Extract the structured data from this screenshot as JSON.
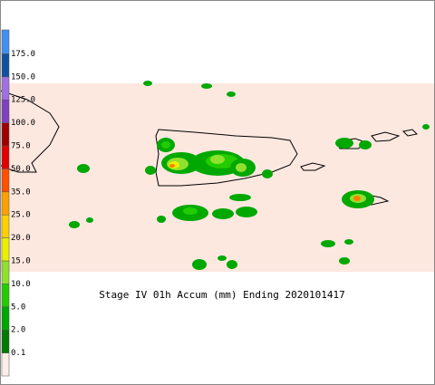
{
  "title": "Stage IV 01h Accum (mm) Ending 2020101417",
  "legend": {
    "labels": [
      "0.1",
      "2.0",
      "5.0",
      "10.0",
      "15.0",
      "20.0",
      "25.0",
      "35.0",
      "50.0",
      "75.0",
      "100.0",
      "125.0",
      "150.0",
      "175.0"
    ],
    "colors": [
      "#fbeee8",
      "#007a00",
      "#00a800",
      "#22cc00",
      "#90e030",
      "#e8f000",
      "#ffd000",
      "#ffa000",
      "#ff5000",
      "#e00000",
      "#a00000",
      "#8040c0",
      "#a070e0",
      "#1050a0",
      "#4090f0"
    ]
  }
}
